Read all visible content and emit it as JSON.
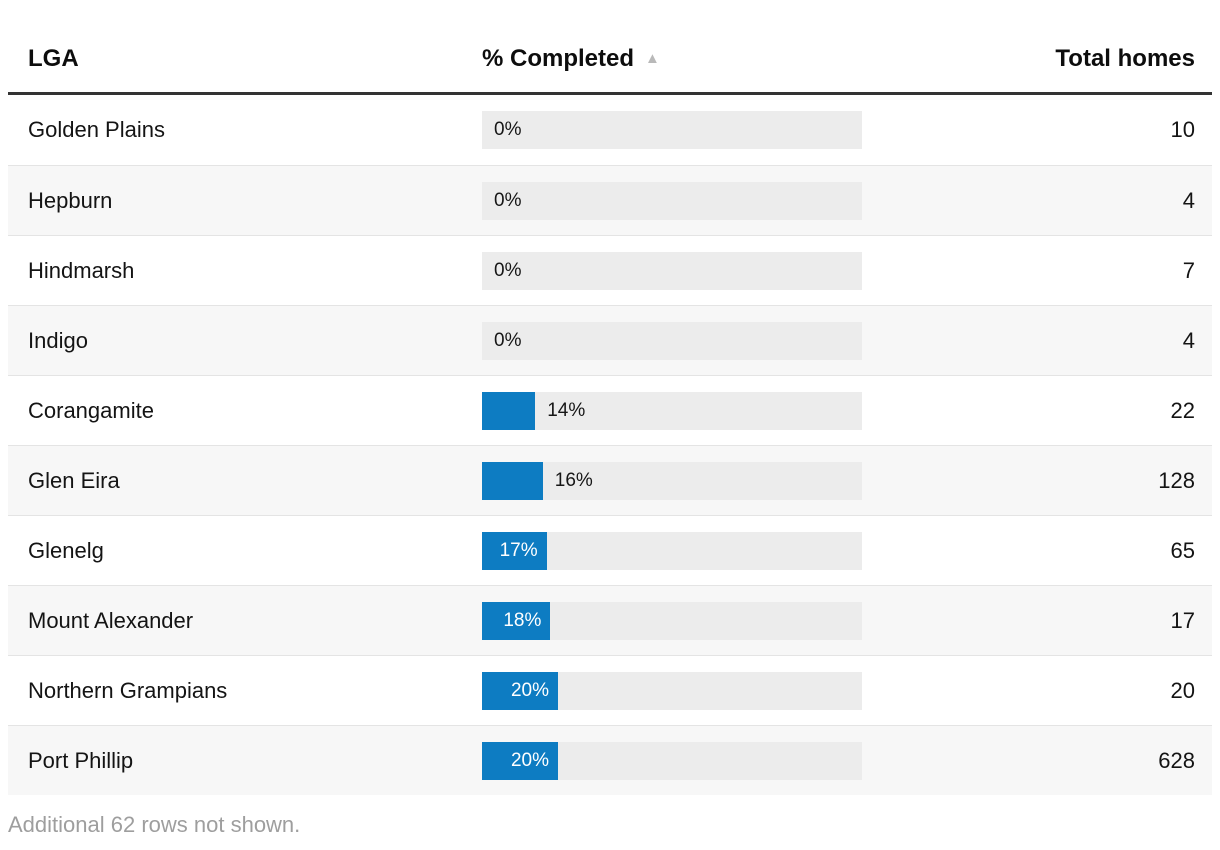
{
  "header": {
    "lga": "LGA",
    "completed": "% Completed",
    "total": "Total homes"
  },
  "icons": {
    "sort_ascending": "▲"
  },
  "footer": {
    "note": "Additional 62 rows not shown."
  },
  "colors": {
    "bar_fill": "#0d7cc2",
    "bar_track": "#ececec",
    "row_alt": "#f7f7f7",
    "row_separator": "#e4e4e4",
    "header_border": "#333333",
    "sort_triangle": "#b9b9b9",
    "muted_text": "#9e9e9e"
  },
  "chart_data": {
    "type": "table",
    "columns": [
      "LGA",
      "% Completed",
      "Total homes"
    ],
    "sort": {
      "column": "% Completed",
      "direction": "ascending"
    },
    "bar_axis": {
      "min": 0,
      "max": 100,
      "unit": "%"
    },
    "rows": [
      {
        "lga": "Golden Plains",
        "pct_completed": 0,
        "pct_label": "0%",
        "total_homes": 10
      },
      {
        "lga": "Hepburn",
        "pct_completed": 0,
        "pct_label": "0%",
        "total_homes": 4
      },
      {
        "lga": "Hindmarsh",
        "pct_completed": 0,
        "pct_label": "0%",
        "total_homes": 7
      },
      {
        "lga": "Indigo",
        "pct_completed": 0,
        "pct_label": "0%",
        "total_homes": 4
      },
      {
        "lga": "Corangamite",
        "pct_completed": 14,
        "pct_label": "14%",
        "total_homes": 22
      },
      {
        "lga": "Glen Eira",
        "pct_completed": 16,
        "pct_label": "16%",
        "total_homes": 128
      },
      {
        "lga": "Glenelg",
        "pct_completed": 17,
        "pct_label": "17%",
        "total_homes": 65
      },
      {
        "lga": "Mount Alexander",
        "pct_completed": 18,
        "pct_label": "18%",
        "total_homes": 17
      },
      {
        "lga": "Northern Grampians",
        "pct_completed": 20,
        "pct_label": "20%",
        "total_homes": 20
      },
      {
        "lga": "Port Phillip",
        "pct_completed": 20,
        "pct_label": "20%",
        "total_homes": 628
      }
    ],
    "footnote": "Additional 62 rows not shown."
  }
}
